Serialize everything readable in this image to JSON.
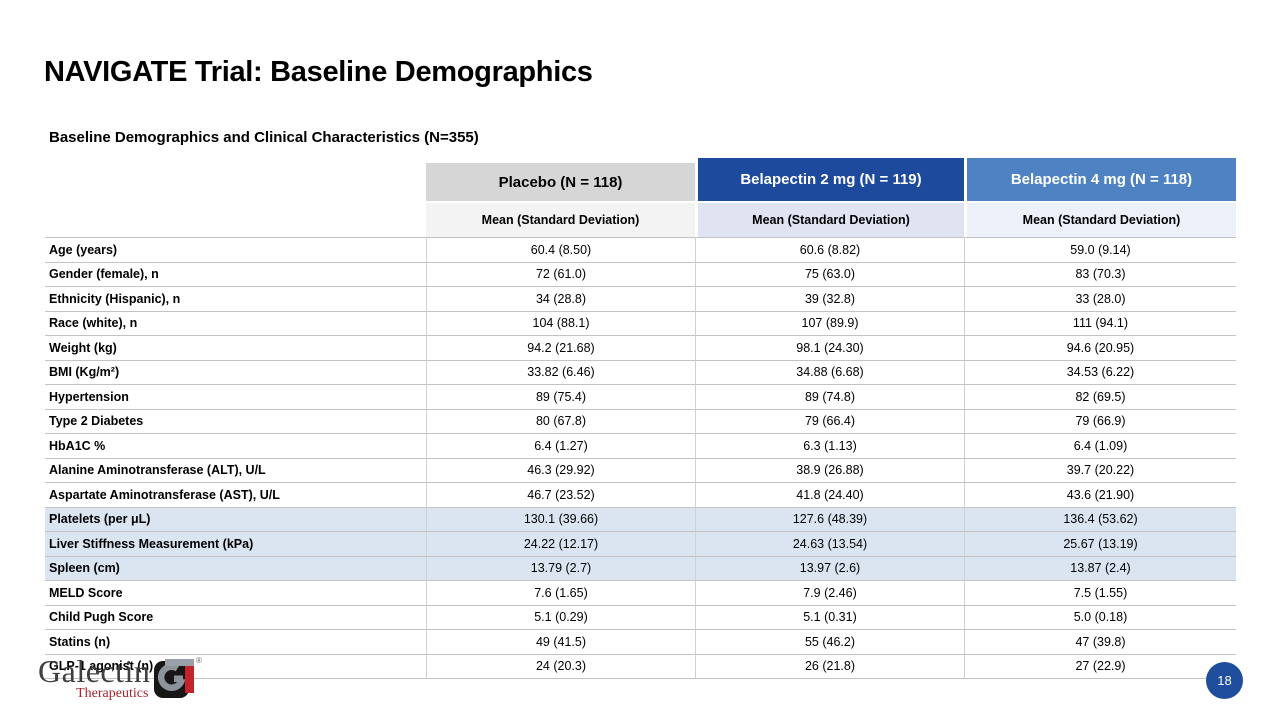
{
  "slide": {
    "title": "NAVIGATE Trial: Baseline Demographics",
    "subtitle": "Baseline Demographics and Clinical Characteristics (N=355)",
    "page_number": "18"
  },
  "logo": {
    "name": "Galectin",
    "sub": "Therapeutics"
  },
  "colors": {
    "placebo_header_bg": "#d6d6d6",
    "belapectin2_header_bg": "#1e4a9e",
    "belapectin4_header_bg": "#4f82c2",
    "placebo_subheader_bg": "#f3f3f3",
    "belapectin2_subheader_bg": "#dfe3f2",
    "belapectin4_subheader_bg": "#ecf1f9",
    "highlight_row_bg": "#dbe5f1",
    "page_circle_bg": "#1f4e9c",
    "logo_red": "#a6242c"
  },
  "table": {
    "columns": [
      {
        "label": "Placebo (N = 118)",
        "sub": "Mean (Standard Deviation)"
      },
      {
        "label": "Belapectin 2 mg (N = 119)",
        "sub": "Mean (Standard Deviation)"
      },
      {
        "label": "Belapectin 4 mg (N = 118)",
        "sub": "Mean (Standard Deviation)"
      }
    ],
    "rows": [
      {
        "label": "Age (years)",
        "values": [
          "60.4 (8.50)",
          "60.6 (8.82)",
          "59.0 (9.14)"
        ],
        "highlight": false
      },
      {
        "label": "Gender (female), n",
        "values": [
          "72 (61.0)",
          "75 (63.0)",
          "83 (70.3)"
        ],
        "highlight": false
      },
      {
        "label": "Ethnicity (Hispanic), n",
        "values": [
          "34 (28.8)",
          "39 (32.8)",
          "33 (28.0)"
        ],
        "highlight": false
      },
      {
        "label": "Race (white), n",
        "values": [
          "104 (88.1)",
          "107 (89.9)",
          "111 (94.1)"
        ],
        "highlight": false
      },
      {
        "label": "Weight (kg)",
        "values": [
          "94.2 (21.68)",
          "98.1 (24.30)",
          "94.6 (20.95)"
        ],
        "highlight": false
      },
      {
        "label": "BMI (Kg/m²)",
        "values": [
          "33.82 (6.46)",
          "34.88 (6.68)",
          "34.53 (6.22)"
        ],
        "highlight": false
      },
      {
        "label": "Hypertension",
        "values": [
          "89 (75.4)",
          "89 (74.8)",
          "82 (69.5)"
        ],
        "highlight": false
      },
      {
        "label": "Type 2 Diabetes",
        "values": [
          "80 (67.8)",
          "79 (66.4)",
          "79 (66.9)"
        ],
        "highlight": false
      },
      {
        "label": "HbA1C %",
        "values": [
          "6.4 (1.27)",
          "6.3 (1.13)",
          "6.4 (1.09)"
        ],
        "highlight": false
      },
      {
        "label": "Alanine Aminotransferase (ALT), U/L",
        "values": [
          "46.3 (29.92)",
          "38.9 (26.88)",
          "39.7 (20.22)"
        ],
        "highlight": false
      },
      {
        "label": "Aspartate Aminotransferase (AST), U/L",
        "values": [
          "46.7 (23.52)",
          "41.8 (24.40)",
          "43.6 (21.90)"
        ],
        "highlight": false
      },
      {
        "label": "Platelets (per μL)",
        "values": [
          "130.1 (39.66)",
          "127.6 (48.39)",
          "136.4 (53.62)"
        ],
        "highlight": true
      },
      {
        "label": "Liver Stiffness Measurement (kPa)",
        "values": [
          "24.22 (12.17)",
          "24.63 (13.54)",
          "25.67 (13.19)"
        ],
        "highlight": true
      },
      {
        "label": "Spleen (cm)",
        "values": [
          "13.79 (2.7)",
          "13.97 (2.6)",
          "13.87 (2.4)"
        ],
        "highlight": true
      },
      {
        "label": "MELD Score",
        "values": [
          "7.6 (1.65)",
          "7.9 (2.46)",
          "7.5 (1.55)"
        ],
        "highlight": false
      },
      {
        "label": "Child Pugh Score",
        "values": [
          "5.1 (0.29)",
          "5.1 (0.31)",
          "5.0 (0.18)"
        ],
        "highlight": false
      },
      {
        "label": "Statins (n)",
        "values": [
          "49 (41.5)",
          "55 (46.2)",
          "47 (39.8)"
        ],
        "highlight": false
      },
      {
        "label": "GLP-1 agonist (n)",
        "values": [
          "24 (20.3)",
          "26 (21.8)",
          "27 (22.9)"
        ],
        "highlight": false
      }
    ]
  }
}
